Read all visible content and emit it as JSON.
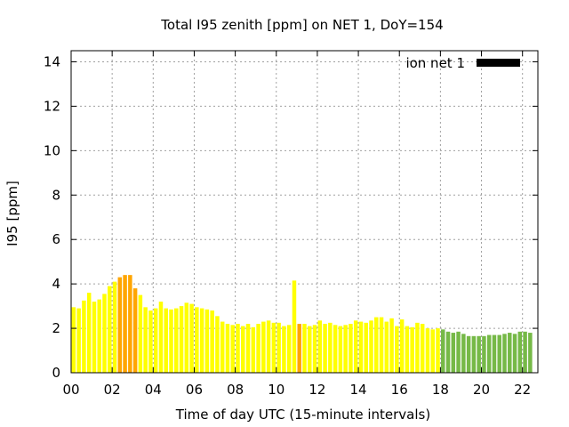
{
  "chart_data": {
    "type": "bar",
    "title": "Total I95 zenith [ppm] on NET 1, DoY=154",
    "xlabel": "Time of day UTC (15-minute intervals)",
    "ylabel": "I95 [ppm]",
    "ylim": [
      0,
      14.5
    ],
    "xlim": [
      0,
      22.75
    ],
    "yticks": [
      0,
      2,
      4,
      6,
      8,
      10,
      12,
      14
    ],
    "xticks": [
      0,
      2,
      4,
      6,
      8,
      10,
      12,
      14,
      16,
      18,
      20,
      22
    ],
    "xtick_labels": [
      "00",
      "02",
      "04",
      "06",
      "08",
      "10",
      "12",
      "14",
      "16",
      "18",
      "20",
      "22"
    ],
    "grid": true,
    "legend": {
      "label": "ion net 1",
      "position": "top-right",
      "color": "#000000"
    },
    "interval_hours": 0.25,
    "colors": {
      "yellow": "#ffff00",
      "orange": "#ffa500",
      "green": "#76b947"
    },
    "values": [
      2.95,
      2.9,
      3.25,
      3.6,
      3.2,
      3.3,
      3.55,
      3.9,
      4.1,
      4.3,
      4.4,
      4.4,
      3.8,
      3.5,
      2.95,
      2.8,
      2.9,
      3.2,
      2.9,
      2.85,
      2.9,
      3.0,
      3.15,
      3.1,
      2.95,
      2.9,
      2.85,
      2.8,
      2.55,
      2.3,
      2.2,
      2.15,
      2.2,
      2.1,
      2.2,
      2.05,
      2.2,
      2.3,
      2.35,
      2.25,
      2.25,
      2.1,
      2.15,
      4.15,
      2.2,
      2.2,
      2.1,
      2.15,
      2.35,
      2.2,
      2.25,
      2.15,
      2.1,
      2.15,
      2.2,
      2.35,
      2.3,
      2.25,
      2.35,
      2.5,
      2.5,
      2.3,
      2.45,
      2.1,
      2.4,
      2.1,
      2.05,
      2.25,
      2.2,
      2.0,
      1.95,
      2.0,
      1.95,
      1.85,
      1.8,
      1.85,
      1.75,
      1.65,
      1.65,
      1.65,
      1.65,
      1.7,
      1.7,
      1.7,
      1.75,
      1.8,
      1.75,
      1.85,
      1.85,
      1.8
    ],
    "bar_colors": [
      "yellow",
      "yellow",
      "yellow",
      "yellow",
      "yellow",
      "yellow",
      "yellow",
      "yellow",
      "yellow",
      "orange",
      "orange",
      "orange",
      "orange",
      "yellow",
      "yellow",
      "yellow",
      "yellow",
      "yellow",
      "yellow",
      "yellow",
      "yellow",
      "yellow",
      "yellow",
      "yellow",
      "yellow",
      "yellow",
      "yellow",
      "yellow",
      "yellow",
      "yellow",
      "yellow",
      "yellow",
      "yellow",
      "yellow",
      "yellow",
      "yellow",
      "yellow",
      "yellow",
      "yellow",
      "yellow",
      "yellow",
      "yellow",
      "yellow",
      "yellow",
      "orange",
      "yellow",
      "yellow",
      "yellow",
      "yellow",
      "yellow",
      "yellow",
      "yellow",
      "yellow",
      "yellow",
      "yellow",
      "yellow",
      "yellow",
      "yellow",
      "yellow",
      "yellow",
      "yellow",
      "yellow",
      "yellow",
      "yellow",
      "yellow",
      "yellow",
      "yellow",
      "yellow",
      "yellow",
      "yellow",
      "yellow",
      "yellow",
      "green",
      "green",
      "green",
      "green",
      "green",
      "green",
      "green",
      "green",
      "green",
      "green",
      "green",
      "green",
      "green",
      "green",
      "green",
      "green",
      "green",
      "green"
    ]
  }
}
